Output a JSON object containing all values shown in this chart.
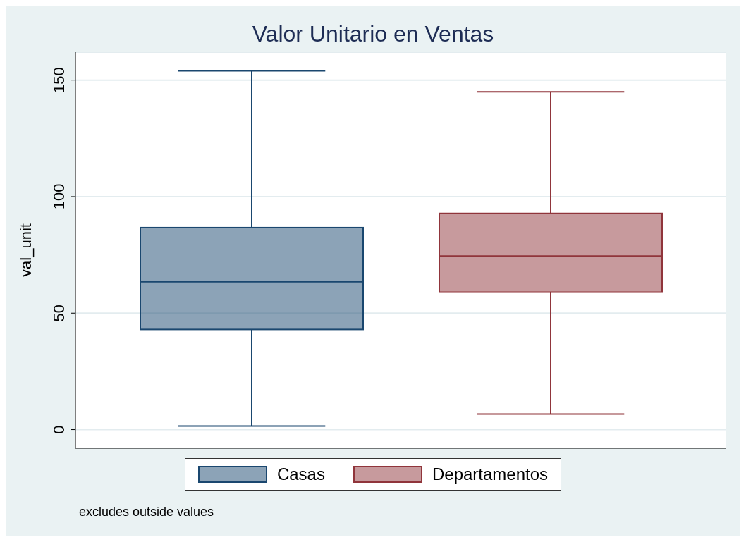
{
  "chart_data": {
    "type": "box",
    "title": "Valor Unitario en Ventas",
    "ylabel": "val_unit",
    "categories": [
      null
    ],
    "series": [
      {
        "name": "Casas",
        "color": "#1a476f",
        "boxes": [
          {
            "low": 1.5,
            "q1": 43,
            "median": 63.5,
            "q3": 86.7,
            "high": 154
          }
        ]
      },
      {
        "name": "Departamentos",
        "color": "#90353b",
        "boxes": [
          {
            "low": 6.7,
            "q1": 59,
            "median": 74.5,
            "q3": 92.8,
            "high": 145
          }
        ]
      }
    ],
    "ylim": [
      -8,
      162
    ],
    "yticks": [
      0,
      50,
      100,
      150
    ],
    "grid": "y",
    "legend": "bottom",
    "annotations": [
      "excludes outside values"
    ]
  }
}
